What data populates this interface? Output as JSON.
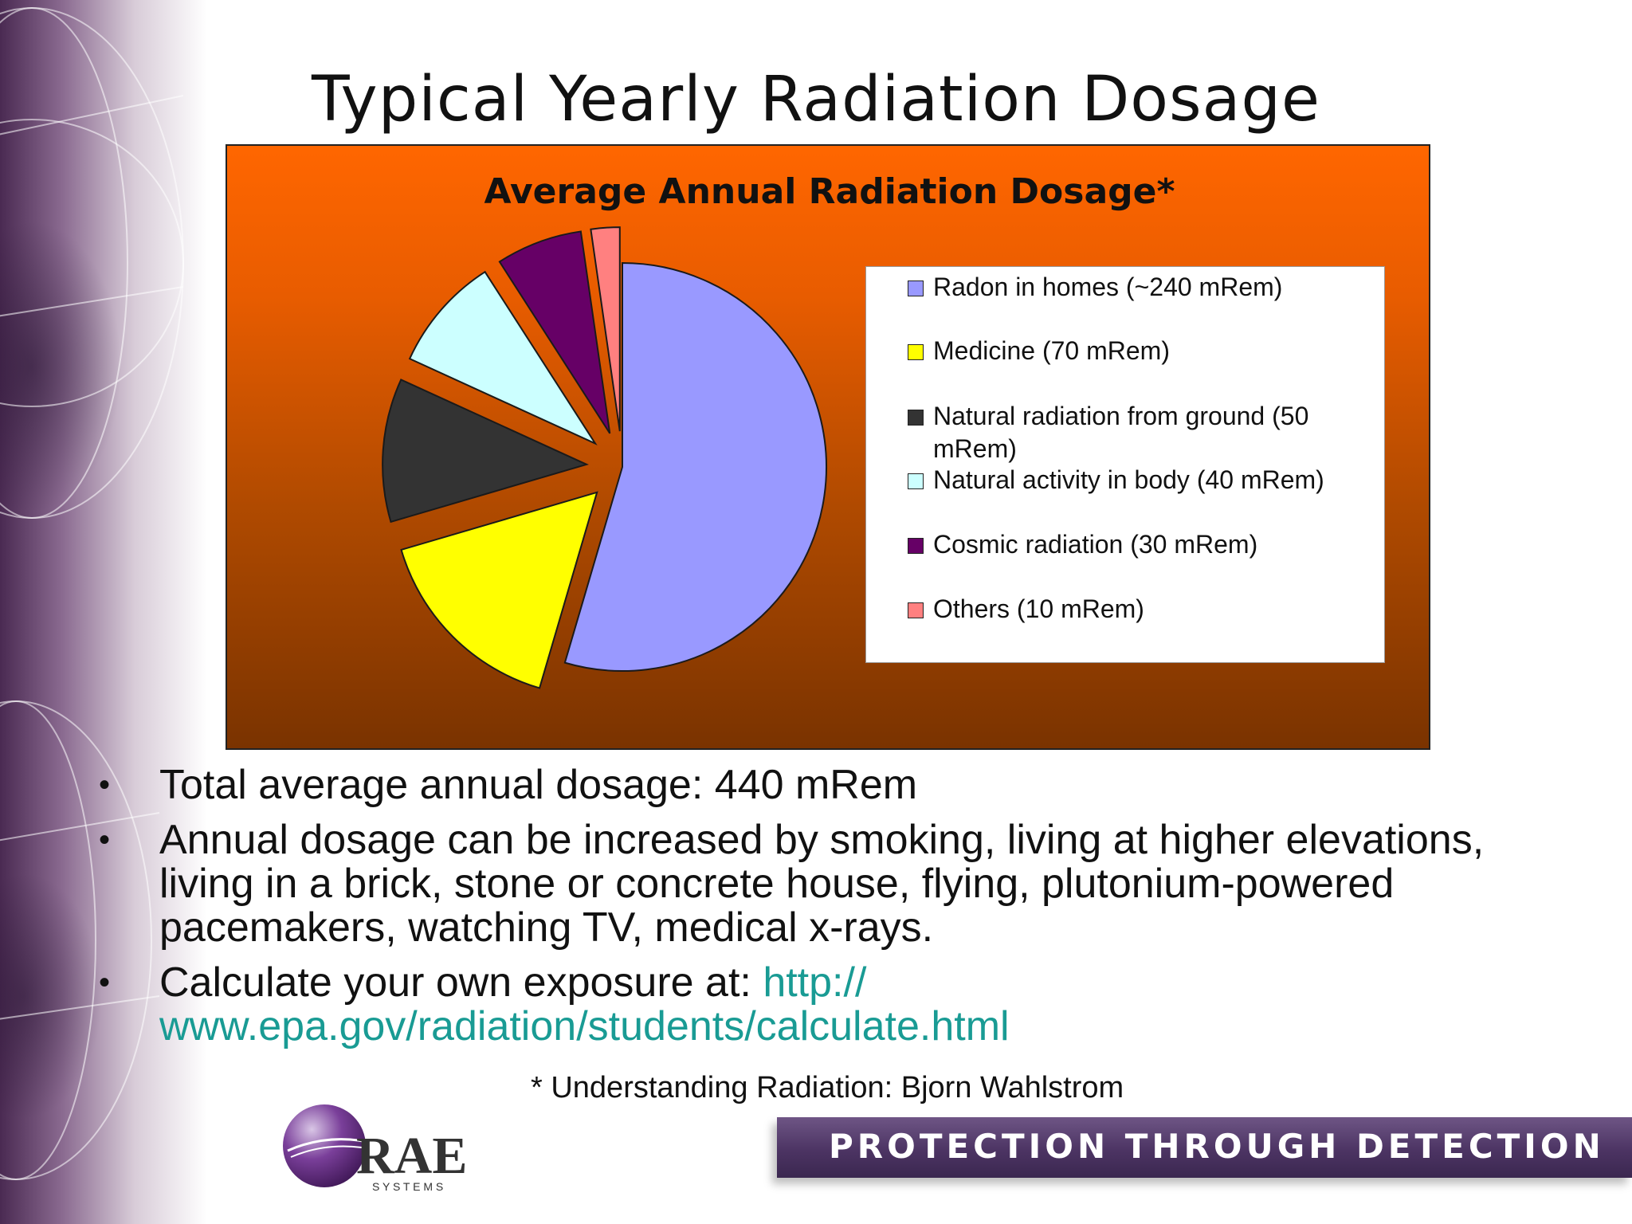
{
  "slide": {
    "title": "Typical Yearly Radiation Dosage",
    "bullets": [
      "Total average annual dosage: 440 mRem",
      "Annual dosage can be increased by smoking, living at higher elevations, living in a brick, stone or concrete house, flying, plutonium-powered pacemakers, watching TV, medical x-rays."
    ],
    "calc_prefix": "Calculate your own exposure at: ",
    "calc_link": "http://\nwww.epa.gov/radiation/students/calculate.html",
    "footnote": "* Understanding Radiation: Bjorn Wahlstrom",
    "tagline": "PROTECTION THROUGH DETECTION",
    "logo_text": "RAE",
    "logo_subtext": "S Y S T E M S",
    "colors": {
      "link": "#199b94",
      "chart_background": "#ff6600",
      "tagline_bar": "#4c3463"
    }
  },
  "chart_data": {
    "type": "pie",
    "title": "Average Annual Radiation Dosage*",
    "legend_position": "right",
    "slices": [
      {
        "label": "Radon in homes (~240 mRem)",
        "value": 240,
        "color": "#9999ff",
        "exploded": false
      },
      {
        "label": "Medicine (70 mRem)",
        "value": 70,
        "color": "#ffff00",
        "exploded": true
      },
      {
        "label": "Natural radiation from ground (50 mRem)",
        "value": 50,
        "color": "#333333",
        "exploded": true
      },
      {
        "label": "Natural activity in body (40 mRem)",
        "value": 40,
        "color": "#ccffff",
        "exploded": true
      },
      {
        "label": "Cosmic radiation (30 mRem)",
        "value": 30,
        "color": "#660066",
        "exploded": true
      },
      {
        "label": "Others (10 mRem)",
        "value": 10,
        "color": "#ff8080",
        "exploded": true
      }
    ]
  }
}
